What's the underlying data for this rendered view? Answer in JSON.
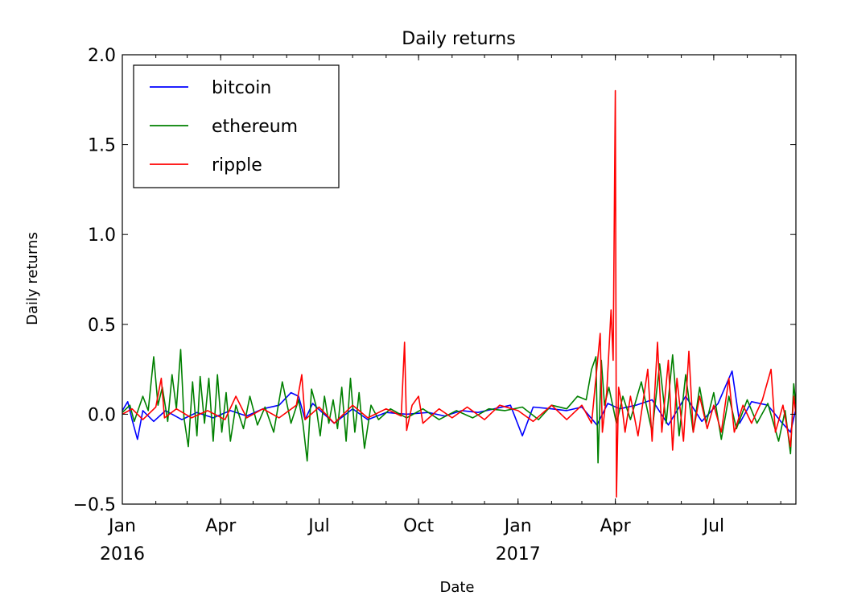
{
  "chart_data": {
    "type": "line",
    "title": "Daily returns",
    "xlabel": "Date",
    "ylabel": "Daily returns",
    "xlim": [
      "2016-01-01",
      "2017-09-15"
    ],
    "ylim": [
      -0.5,
      2.0
    ],
    "yticks": [
      {
        "value": -0.5,
        "label": "−0.5"
      },
      {
        "value": 0.0,
        "label": "0.0"
      },
      {
        "value": 0.5,
        "label": "0.5"
      },
      {
        "value": 1.0,
        "label": "1.0"
      },
      {
        "value": 1.5,
        "label": "1.5"
      },
      {
        "value": 2.0,
        "label": "2.0"
      }
    ],
    "xticks": [
      {
        "date": "2016-01-01",
        "label": "Jan",
        "sublabel": "2016"
      },
      {
        "date": "2016-04-01",
        "label": "Apr",
        "sublabel": ""
      },
      {
        "date": "2016-07-01",
        "label": "Jul",
        "sublabel": ""
      },
      {
        "date": "2016-10-01",
        "label": "Oct",
        "sublabel": ""
      },
      {
        "date": "2017-01-01",
        "label": "Jan",
        "sublabel": "2017"
      },
      {
        "date": "2017-04-01",
        "label": "Apr",
        "sublabel": ""
      },
      {
        "date": "2017-07-01",
        "label": "Jul",
        "sublabel": ""
      }
    ],
    "grid": false,
    "legend_position": "top-left",
    "series": [
      {
        "name": "bitcoin",
        "color": "#0000ff",
        "points": [
          [
            "2016-01-01",
            0.02
          ],
          [
            "2016-01-06",
            0.07
          ],
          [
            "2016-01-10",
            -0.03
          ],
          [
            "2016-01-15",
            -0.14
          ],
          [
            "2016-01-20",
            0.02
          ],
          [
            "2016-01-30",
            -0.04
          ],
          [
            "2016-02-10",
            0.02
          ],
          [
            "2016-02-25",
            -0.03
          ],
          [
            "2016-03-10",
            0.01
          ],
          [
            "2016-03-25",
            -0.02
          ],
          [
            "2016-04-10",
            0.02
          ],
          [
            "2016-04-25",
            -0.01
          ],
          [
            "2016-05-10",
            0.03
          ],
          [
            "2016-05-25",
            0.05
          ],
          [
            "2016-06-05",
            0.12
          ],
          [
            "2016-06-12",
            0.1
          ],
          [
            "2016-06-18",
            -0.03
          ],
          [
            "2016-06-25",
            0.06
          ],
          [
            "2016-07-02",
            0.02
          ],
          [
            "2016-07-15",
            -0.05
          ],
          [
            "2016-08-01",
            0.03
          ],
          [
            "2016-08-15",
            -0.03
          ],
          [
            "2016-09-01",
            0.01
          ],
          [
            "2016-09-20",
            0.0
          ],
          [
            "2016-10-10",
            0.01
          ],
          [
            "2016-10-25",
            -0.01
          ],
          [
            "2016-11-10",
            0.02
          ],
          [
            "2016-11-25",
            0.01
          ],
          [
            "2016-12-10",
            0.03
          ],
          [
            "2016-12-25",
            0.05
          ],
          [
            "2017-01-05",
            -0.12
          ],
          [
            "2017-01-15",
            0.04
          ],
          [
            "2017-02-01",
            0.03
          ],
          [
            "2017-02-15",
            0.02
          ],
          [
            "2017-03-01",
            0.04
          ],
          [
            "2017-03-15",
            -0.06
          ],
          [
            "2017-03-25",
            0.06
          ],
          [
            "2017-04-05",
            0.03
          ],
          [
            "2017-04-20",
            0.05
          ],
          [
            "2017-05-05",
            0.08
          ],
          [
            "2017-05-20",
            -0.06
          ],
          [
            "2017-06-05",
            0.1
          ],
          [
            "2017-06-20",
            -0.04
          ],
          [
            "2017-07-05",
            0.06
          ],
          [
            "2017-07-18",
            0.24
          ],
          [
            "2017-07-25",
            -0.05
          ],
          [
            "2017-08-05",
            0.07
          ],
          [
            "2017-08-20",
            0.05
          ],
          [
            "2017-09-01",
            -0.04
          ],
          [
            "2017-09-10",
            -0.1
          ],
          [
            "2017-09-15",
            0.03
          ]
        ]
      },
      {
        "name": "ethereum",
        "color": "#008000",
        "points": [
          [
            "2016-01-01",
            0.01
          ],
          [
            "2016-01-08",
            0.05
          ],
          [
            "2016-01-12",
            -0.04
          ],
          [
            "2016-01-20",
            0.1
          ],
          [
            "2016-01-25",
            0.02
          ],
          [
            "2016-01-30",
            0.32
          ],
          [
            "2016-02-03",
            0.05
          ],
          [
            "2016-02-07",
            0.15
          ],
          [
            "2016-02-12",
            -0.04
          ],
          [
            "2016-02-16",
            0.22
          ],
          [
            "2016-02-20",
            0.03
          ],
          [
            "2016-02-24",
            0.36
          ],
          [
            "2016-02-27",
            -0.02
          ],
          [
            "2016-03-02",
            -0.18
          ],
          [
            "2016-03-06",
            0.18
          ],
          [
            "2016-03-10",
            -0.12
          ],
          [
            "2016-03-13",
            0.21
          ],
          [
            "2016-03-17",
            -0.05
          ],
          [
            "2016-03-21",
            0.2
          ],
          [
            "2016-03-25",
            -0.15
          ],
          [
            "2016-03-29",
            0.22
          ],
          [
            "2016-04-02",
            -0.1
          ],
          [
            "2016-04-06",
            0.12
          ],
          [
            "2016-04-10",
            -0.15
          ],
          [
            "2016-04-15",
            0.05
          ],
          [
            "2016-04-22",
            -0.08
          ],
          [
            "2016-04-28",
            0.1
          ],
          [
            "2016-05-05",
            -0.06
          ],
          [
            "2016-05-12",
            0.04
          ],
          [
            "2016-05-20",
            -0.1
          ],
          [
            "2016-05-28",
            0.18
          ],
          [
            "2016-06-05",
            -0.05
          ],
          [
            "2016-06-12",
            0.08
          ],
          [
            "2016-06-16",
            -0.05
          ],
          [
            "2016-06-20",
            -0.26
          ],
          [
            "2016-06-24",
            0.14
          ],
          [
            "2016-06-28",
            0.05
          ],
          [
            "2016-07-02",
            -0.12
          ],
          [
            "2016-07-06",
            0.1
          ],
          [
            "2016-07-10",
            -0.05
          ],
          [
            "2016-07-14",
            0.08
          ],
          [
            "2016-07-18",
            -0.08
          ],
          [
            "2016-07-22",
            0.15
          ],
          [
            "2016-07-26",
            -0.15
          ],
          [
            "2016-07-30",
            0.2
          ],
          [
            "2016-08-03",
            -0.1
          ],
          [
            "2016-08-07",
            0.12
          ],
          [
            "2016-08-12",
            -0.19
          ],
          [
            "2016-08-18",
            0.05
          ],
          [
            "2016-08-25",
            -0.03
          ],
          [
            "2016-09-05",
            0.03
          ],
          [
            "2016-09-20",
            -0.02
          ],
          [
            "2016-10-05",
            0.03
          ],
          [
            "2016-10-20",
            -0.03
          ],
          [
            "2016-11-05",
            0.02
          ],
          [
            "2016-11-20",
            -0.02
          ],
          [
            "2016-12-05",
            0.03
          ],
          [
            "2016-12-20",
            0.02
          ],
          [
            "2017-01-05",
            0.04
          ],
          [
            "2017-01-20",
            -0.03
          ],
          [
            "2017-02-01",
            0.05
          ],
          [
            "2017-02-15",
            0.03
          ],
          [
            "2017-02-25",
            0.1
          ],
          [
            "2017-03-05",
            0.08
          ],
          [
            "2017-03-10",
            0.25
          ],
          [
            "2017-03-14",
            0.32
          ],
          [
            "2017-03-16",
            -0.27
          ],
          [
            "2017-03-19",
            0.3
          ],
          [
            "2017-03-22",
            0.05
          ],
          [
            "2017-03-26",
            0.15
          ],
          [
            "2017-04-02",
            -0.05
          ],
          [
            "2017-04-08",
            0.1
          ],
          [
            "2017-04-15",
            -0.03
          ],
          [
            "2017-04-25",
            0.18
          ],
          [
            "2017-05-05",
            -0.1
          ],
          [
            "2017-05-12",
            0.28
          ],
          [
            "2017-05-18",
            -0.05
          ],
          [
            "2017-05-24",
            0.33
          ],
          [
            "2017-05-30",
            -0.12
          ],
          [
            "2017-06-05",
            0.22
          ],
          [
            "2017-06-12",
            -0.1
          ],
          [
            "2017-06-18",
            0.15
          ],
          [
            "2017-06-24",
            -0.05
          ],
          [
            "2017-07-01",
            0.12
          ],
          [
            "2017-07-08",
            -0.14
          ],
          [
            "2017-07-15",
            0.1
          ],
          [
            "2017-07-22",
            -0.08
          ],
          [
            "2017-08-01",
            0.08
          ],
          [
            "2017-08-10",
            -0.05
          ],
          [
            "2017-08-20",
            0.06
          ],
          [
            "2017-08-30",
            -0.15
          ],
          [
            "2017-09-05",
            0.02
          ],
          [
            "2017-09-10",
            -0.22
          ],
          [
            "2017-09-13",
            0.17
          ],
          [
            "2017-09-15",
            0.05
          ]
        ]
      },
      {
        "name": "ripple",
        "color": "#ff0000",
        "points": [
          [
            "2016-01-01",
            0.0
          ],
          [
            "2016-01-10",
            0.03
          ],
          [
            "2016-01-20",
            -0.03
          ],
          [
            "2016-02-01",
            0.04
          ],
          [
            "2016-02-06",
            0.2
          ],
          [
            "2016-02-09",
            -0.02
          ],
          [
            "2016-02-20",
            0.03
          ],
          [
            "2016-03-05",
            -0.02
          ],
          [
            "2016-03-20",
            0.02
          ],
          [
            "2016-04-05",
            -0.03
          ],
          [
            "2016-04-15",
            0.1
          ],
          [
            "2016-04-25",
            -0.02
          ],
          [
            "2016-05-10",
            0.03
          ],
          [
            "2016-05-25",
            -0.02
          ],
          [
            "2016-06-10",
            0.05
          ],
          [
            "2016-06-15",
            0.22
          ],
          [
            "2016-06-18",
            -0.03
          ],
          [
            "2016-07-01",
            0.04
          ],
          [
            "2016-07-15",
            -0.05
          ],
          [
            "2016-08-01",
            0.05
          ],
          [
            "2016-08-15",
            -0.02
          ],
          [
            "2016-09-01",
            0.03
          ],
          [
            "2016-09-15",
            -0.01
          ],
          [
            "2016-09-18",
            0.4
          ],
          [
            "2016-09-20",
            -0.09
          ],
          [
            "2016-09-25",
            0.05
          ],
          [
            "2016-10-01",
            0.1
          ],
          [
            "2016-10-05",
            -0.05
          ],
          [
            "2016-10-20",
            0.03
          ],
          [
            "2016-11-01",
            -0.02
          ],
          [
            "2016-11-15",
            0.04
          ],
          [
            "2016-12-01",
            -0.03
          ],
          [
            "2016-12-15",
            0.05
          ],
          [
            "2017-01-01",
            0.02
          ],
          [
            "2017-01-15",
            -0.04
          ],
          [
            "2017-02-01",
            0.05
          ],
          [
            "2017-02-15",
            -0.03
          ],
          [
            "2017-03-01",
            0.05
          ],
          [
            "2017-03-10",
            -0.05
          ],
          [
            "2017-03-18",
            0.45
          ],
          [
            "2017-03-20",
            -0.1
          ],
          [
            "2017-03-24",
            0.12
          ],
          [
            "2017-03-28",
            0.58
          ],
          [
            "2017-03-30",
            0.3
          ],
          [
            "2017-04-01",
            1.8
          ],
          [
            "2017-04-02",
            -0.46
          ],
          [
            "2017-04-04",
            0.15
          ],
          [
            "2017-04-07",
            0.05
          ],
          [
            "2017-04-10",
            -0.1
          ],
          [
            "2017-04-15",
            0.1
          ],
          [
            "2017-04-22",
            -0.12
          ],
          [
            "2017-05-01",
            0.25
          ],
          [
            "2017-05-05",
            -0.15
          ],
          [
            "2017-05-10",
            0.4
          ],
          [
            "2017-05-14",
            -0.1
          ],
          [
            "2017-05-20",
            0.3
          ],
          [
            "2017-05-24",
            -0.2
          ],
          [
            "2017-05-28",
            0.2
          ],
          [
            "2017-06-03",
            -0.15
          ],
          [
            "2017-06-08",
            0.35
          ],
          [
            "2017-06-12",
            -0.1
          ],
          [
            "2017-06-18",
            0.1
          ],
          [
            "2017-06-25",
            -0.08
          ],
          [
            "2017-07-01",
            0.05
          ],
          [
            "2017-07-08",
            -0.1
          ],
          [
            "2017-07-15",
            0.2
          ],
          [
            "2017-07-20",
            -0.1
          ],
          [
            "2017-07-28",
            0.05
          ],
          [
            "2017-08-05",
            -0.05
          ],
          [
            "2017-08-15",
            0.08
          ],
          [
            "2017-08-23",
            0.25
          ],
          [
            "2017-08-27",
            -0.1
          ],
          [
            "2017-09-03",
            0.05
          ],
          [
            "2017-09-10",
            -0.18
          ],
          [
            "2017-09-13",
            0.1
          ],
          [
            "2017-09-15",
            0.0
          ]
        ]
      }
    ]
  }
}
